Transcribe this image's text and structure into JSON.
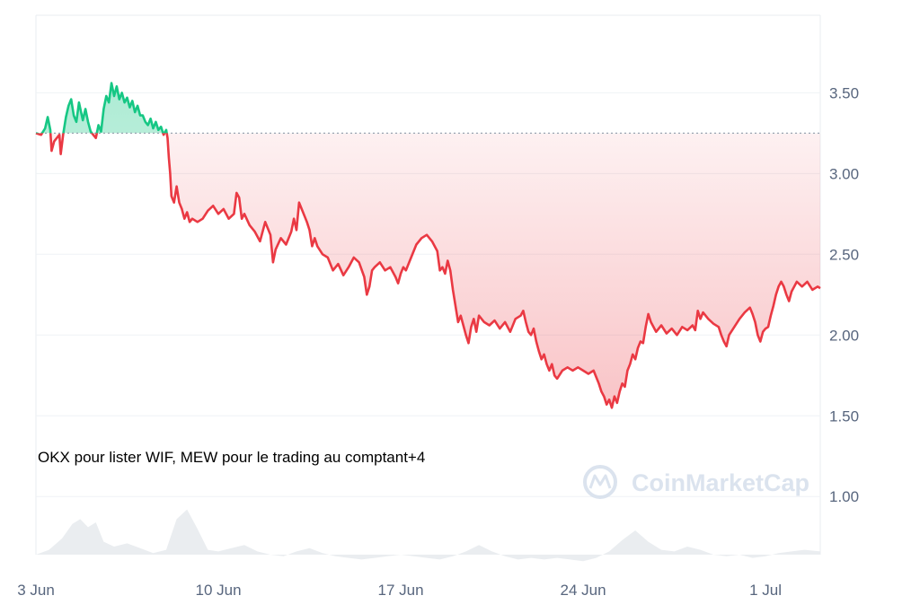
{
  "chart_data": {
    "type": "line",
    "title": "",
    "xlabel": "",
    "ylabel": "",
    "x_ticks": [
      "3 Jun",
      "10 Jun",
      "17 Jun",
      "24 Jun",
      "1 Jul"
    ],
    "y_ticks": [
      "1.00",
      "1.50",
      "2.00",
      "2.50",
      "3.00",
      "3.50"
    ],
    "ylim": [
      0.64,
      3.98
    ],
    "x_range_days": [
      0,
      30.1
    ],
    "baseline": 3.25,
    "annotation": "OKX pour lister WIF, MEW pour le trading au comptant+4",
    "watermark": "CoinMarketCap",
    "colors": {
      "up": "#16c784",
      "down": "#ea3943",
      "grid": "#eff2f5",
      "volume": "#eaedf0"
    },
    "price_series": [
      [
        0.0,
        3.25
      ],
      [
        0.2,
        3.24
      ],
      [
        0.35,
        3.28
      ],
      [
        0.45,
        3.35
      ],
      [
        0.55,
        3.27
      ],
      [
        0.6,
        3.14
      ],
      [
        0.7,
        3.2
      ],
      [
        0.8,
        3.22
      ],
      [
        0.9,
        3.24
      ],
      [
        0.95,
        3.12
      ],
      [
        1.05,
        3.25
      ],
      [
        1.15,
        3.35
      ],
      [
        1.25,
        3.42
      ],
      [
        1.35,
        3.46
      ],
      [
        1.45,
        3.36
      ],
      [
        1.55,
        3.32
      ],
      [
        1.65,
        3.44
      ],
      [
        1.8,
        3.33
      ],
      [
        1.9,
        3.4
      ],
      [
        2.0,
        3.32
      ],
      [
        2.1,
        3.26
      ],
      [
        2.2,
        3.24
      ],
      [
        2.3,
        3.22
      ],
      [
        2.4,
        3.3
      ],
      [
        2.5,
        3.26
      ],
      [
        2.6,
        3.4
      ],
      [
        2.7,
        3.48
      ],
      [
        2.8,
        3.44
      ],
      [
        2.9,
        3.56
      ],
      [
        3.0,
        3.48
      ],
      [
        3.1,
        3.54
      ],
      [
        3.2,
        3.46
      ],
      [
        3.3,
        3.5
      ],
      [
        3.4,
        3.44
      ],
      [
        3.5,
        3.47
      ],
      [
        3.6,
        3.41
      ],
      [
        3.7,
        3.45
      ],
      [
        3.8,
        3.38
      ],
      [
        3.9,
        3.42
      ],
      [
        4.0,
        3.36
      ],
      [
        4.1,
        3.36
      ],
      [
        4.2,
        3.32
      ],
      [
        4.3,
        3.3
      ],
      [
        4.4,
        3.34
      ],
      [
        4.5,
        3.28
      ],
      [
        4.6,
        3.32
      ],
      [
        4.7,
        3.27
      ],
      [
        4.8,
        3.29
      ],
      [
        4.9,
        3.24
      ],
      [
        5.0,
        3.27
      ],
      [
        5.05,
        3.22
      ],
      [
        5.1,
        3.1
      ],
      [
        5.15,
        3.0
      ],
      [
        5.2,
        2.86
      ],
      [
        5.3,
        2.82
      ],
      [
        5.4,
        2.92
      ],
      [
        5.5,
        2.82
      ],
      [
        5.6,
        2.78
      ],
      [
        5.7,
        2.72
      ],
      [
        5.8,
        2.76
      ],
      [
        5.9,
        2.7
      ],
      [
        6.0,
        2.72
      ],
      [
        6.2,
        2.7
      ],
      [
        6.4,
        2.72
      ],
      [
        6.6,
        2.77
      ],
      [
        6.8,
        2.8
      ],
      [
        7.0,
        2.75
      ],
      [
        7.2,
        2.78
      ],
      [
        7.4,
        2.72
      ],
      [
        7.6,
        2.75
      ],
      [
        7.7,
        2.88
      ],
      [
        7.8,
        2.85
      ],
      [
        7.9,
        2.72
      ],
      [
        8.0,
        2.75
      ],
      [
        8.2,
        2.68
      ],
      [
        8.4,
        2.64
      ],
      [
        8.6,
        2.58
      ],
      [
        8.8,
        2.7
      ],
      [
        9.0,
        2.62
      ],
      [
        9.1,
        2.45
      ],
      [
        9.2,
        2.53
      ],
      [
        9.4,
        2.6
      ],
      [
        9.6,
        2.56
      ],
      [
        9.8,
        2.64
      ],
      [
        9.9,
        2.72
      ],
      [
        10.0,
        2.65
      ],
      [
        10.1,
        2.82
      ],
      [
        10.2,
        2.78
      ],
      [
        10.4,
        2.7
      ],
      [
        10.5,
        2.65
      ],
      [
        10.6,
        2.55
      ],
      [
        10.7,
        2.6
      ],
      [
        10.8,
        2.55
      ],
      [
        11.0,
        2.5
      ],
      [
        11.2,
        2.48
      ],
      [
        11.4,
        2.4
      ],
      [
        11.6,
        2.44
      ],
      [
        11.8,
        2.37
      ],
      [
        12.0,
        2.42
      ],
      [
        12.2,
        2.48
      ],
      [
        12.4,
        2.45
      ],
      [
        12.6,
        2.36
      ],
      [
        12.7,
        2.25
      ],
      [
        12.8,
        2.3
      ],
      [
        12.9,
        2.4
      ],
      [
        13.0,
        2.42
      ],
      [
        13.2,
        2.45
      ],
      [
        13.4,
        2.4
      ],
      [
        13.6,
        2.42
      ],
      [
        13.8,
        2.36
      ],
      [
        13.9,
        2.32
      ],
      [
        14.0,
        2.38
      ],
      [
        14.1,
        2.42
      ],
      [
        14.2,
        2.4
      ],
      [
        14.4,
        2.48
      ],
      [
        14.6,
        2.56
      ],
      [
        14.8,
        2.6
      ],
      [
        15.0,
        2.62
      ],
      [
        15.2,
        2.58
      ],
      [
        15.4,
        2.52
      ],
      [
        15.5,
        2.4
      ],
      [
        15.6,
        2.42
      ],
      [
        15.7,
        2.38
      ],
      [
        15.8,
        2.46
      ],
      [
        15.9,
        2.4
      ],
      [
        16.0,
        2.28
      ],
      [
        16.1,
        2.18
      ],
      [
        16.2,
        2.08
      ],
      [
        16.3,
        2.12
      ],
      [
        16.4,
        2.06
      ],
      [
        16.5,
        2.0
      ],
      [
        16.6,
        1.95
      ],
      [
        16.7,
        2.05
      ],
      [
        16.8,
        2.1
      ],
      [
        16.9,
        2.02
      ],
      [
        17.0,
        2.12
      ],
      [
        17.2,
        2.08
      ],
      [
        17.4,
        2.06
      ],
      [
        17.6,
        2.09
      ],
      [
        17.8,
        2.04
      ],
      [
        18.0,
        2.08
      ],
      [
        18.2,
        2.02
      ],
      [
        18.4,
        2.1
      ],
      [
        18.6,
        2.12
      ],
      [
        18.7,
        2.15
      ],
      [
        18.8,
        2.08
      ],
      [
        18.9,
        2.02
      ],
      [
        19.0,
        2.0
      ],
      [
        19.1,
        2.04
      ],
      [
        19.2,
        1.96
      ],
      [
        19.3,
        1.9
      ],
      [
        19.4,
        1.85
      ],
      [
        19.5,
        1.88
      ],
      [
        19.6,
        1.82
      ],
      [
        19.7,
        1.78
      ],
      [
        19.8,
        1.82
      ],
      [
        19.9,
        1.75
      ],
      [
        20.0,
        1.73
      ],
      [
        20.2,
        1.78
      ],
      [
        20.4,
        1.8
      ],
      [
        20.6,
        1.78
      ],
      [
        20.8,
        1.8
      ],
      [
        21.0,
        1.78
      ],
      [
        21.2,
        1.76
      ],
      [
        21.4,
        1.78
      ],
      [
        21.5,
        1.74
      ],
      [
        21.6,
        1.7
      ],
      [
        21.7,
        1.65
      ],
      [
        21.8,
        1.62
      ],
      [
        21.9,
        1.57
      ],
      [
        22.0,
        1.6
      ],
      [
        22.1,
        1.55
      ],
      [
        22.2,
        1.62
      ],
      [
        22.3,
        1.58
      ],
      [
        22.4,
        1.65
      ],
      [
        22.5,
        1.7
      ],
      [
        22.6,
        1.68
      ],
      [
        22.7,
        1.78
      ],
      [
        22.8,
        1.82
      ],
      [
        22.9,
        1.88
      ],
      [
        23.0,
        1.85
      ],
      [
        23.1,
        1.92
      ],
      [
        23.2,
        1.96
      ],
      [
        23.3,
        1.95
      ],
      [
        23.4,
        2.05
      ],
      [
        23.5,
        2.13
      ],
      [
        23.6,
        2.08
      ],
      [
        23.8,
        2.02
      ],
      [
        24.0,
        2.06
      ],
      [
        24.2,
        2.01
      ],
      [
        24.4,
        2.04
      ],
      [
        24.6,
        2.0
      ],
      [
        24.8,
        2.05
      ],
      [
        25.0,
        2.03
      ],
      [
        25.2,
        2.06
      ],
      [
        25.3,
        2.03
      ],
      [
        25.4,
        2.15
      ],
      [
        25.5,
        2.1
      ],
      [
        25.6,
        2.14
      ],
      [
        25.8,
        2.1
      ],
      [
        26.0,
        2.07
      ],
      [
        26.2,
        2.05
      ],
      [
        26.3,
        2.0
      ],
      [
        26.4,
        1.96
      ],
      [
        26.5,
        1.93
      ],
      [
        26.6,
        2.0
      ],
      [
        26.8,
        2.05
      ],
      [
        27.0,
        2.1
      ],
      [
        27.2,
        2.14
      ],
      [
        27.4,
        2.17
      ],
      [
        27.5,
        2.13
      ],
      [
        27.6,
        2.08
      ],
      [
        27.7,
        2.0
      ],
      [
        27.8,
        1.96
      ],
      [
        27.9,
        2.02
      ],
      [
        28.0,
        2.04
      ],
      [
        28.1,
        2.05
      ],
      [
        28.2,
        2.12
      ],
      [
        28.3,
        2.18
      ],
      [
        28.4,
        2.25
      ],
      [
        28.5,
        2.3
      ],
      [
        28.6,
        2.33
      ],
      [
        28.7,
        2.3
      ],
      [
        28.8,
        2.25
      ],
      [
        28.9,
        2.21
      ],
      [
        29.0,
        2.27
      ],
      [
        29.2,
        2.33
      ],
      [
        29.4,
        2.3
      ],
      [
        29.6,
        2.33
      ],
      [
        29.8,
        2.28
      ],
      [
        30.0,
        2.3
      ],
      [
        30.1,
        2.29
      ]
    ],
    "volume_series": [
      [
        0.0,
        0.64
      ],
      [
        0.5,
        0.67
      ],
      [
        1.0,
        0.74
      ],
      [
        1.4,
        0.83
      ],
      [
        1.7,
        0.86
      ],
      [
        2.0,
        0.81
      ],
      [
        2.3,
        0.84
      ],
      [
        2.6,
        0.72
      ],
      [
        3.0,
        0.69
      ],
      [
        3.5,
        0.71
      ],
      [
        4.0,
        0.68
      ],
      [
        4.5,
        0.65
      ],
      [
        5.0,
        0.67
      ],
      [
        5.4,
        0.86
      ],
      [
        5.8,
        0.92
      ],
      [
        6.2,
        0.8
      ],
      [
        6.6,
        0.67
      ],
      [
        7.0,
        0.66
      ],
      [
        7.5,
        0.68
      ],
      [
        8.0,
        0.7
      ],
      [
        8.5,
        0.66
      ],
      [
        9.0,
        0.64
      ],
      [
        9.5,
        0.63
      ],
      [
        10.0,
        0.66
      ],
      [
        10.5,
        0.68
      ],
      [
        11.0,
        0.65
      ],
      [
        11.5,
        0.63
      ],
      [
        12.0,
        0.62
      ],
      [
        12.5,
        0.61
      ],
      [
        13.0,
        0.62
      ],
      [
        13.5,
        0.63
      ],
      [
        14.0,
        0.64
      ],
      [
        14.5,
        0.63
      ],
      [
        15.0,
        0.62
      ],
      [
        15.5,
        0.61
      ],
      [
        16.0,
        0.63
      ],
      [
        16.5,
        0.66
      ],
      [
        17.0,
        0.7
      ],
      [
        17.5,
        0.66
      ],
      [
        18.0,
        0.63
      ],
      [
        18.5,
        0.61
      ],
      [
        19.0,
        0.62
      ],
      [
        19.5,
        0.61
      ],
      [
        20.0,
        0.62
      ],
      [
        20.5,
        0.61
      ],
      [
        21.0,
        0.6
      ],
      [
        21.5,
        0.62
      ],
      [
        22.0,
        0.66
      ],
      [
        22.5,
        0.73
      ],
      [
        23.0,
        0.79
      ],
      [
        23.5,
        0.72
      ],
      [
        24.0,
        0.67
      ],
      [
        24.5,
        0.66
      ],
      [
        25.0,
        0.69
      ],
      [
        25.5,
        0.67
      ],
      [
        26.0,
        0.64
      ],
      [
        26.5,
        0.63
      ],
      [
        27.0,
        0.64
      ],
      [
        27.5,
        0.62
      ],
      [
        28.0,
        0.63
      ],
      [
        28.5,
        0.65
      ],
      [
        29.0,
        0.66
      ],
      [
        29.5,
        0.67
      ],
      [
        30.1,
        0.66
      ]
    ]
  }
}
